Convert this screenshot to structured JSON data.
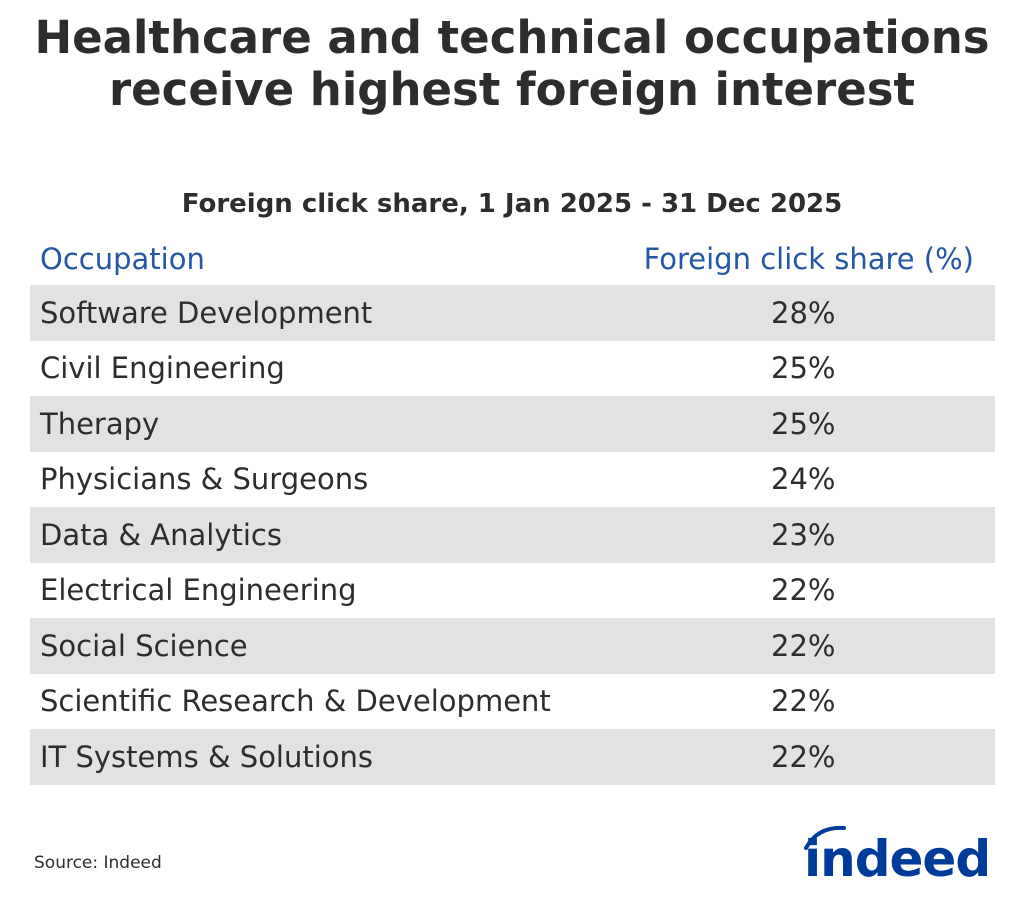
{
  "chart_data": {
    "type": "table",
    "title": "Healthcare and technical occupations receive highest foreign interest",
    "subtitle": "Foreign click share, 1 Jan 2025 - 31 Dec 2025",
    "columns": [
      "Occupation",
      "Foreign click share (%)"
    ],
    "rows": [
      {
        "occupation": "Software Development",
        "value": "28%"
      },
      {
        "occupation": "Civil Engineering",
        "value": "25%"
      },
      {
        "occupation": "Therapy",
        "value": "25%"
      },
      {
        "occupation": "Physicians & Surgeons",
        "value": "24%"
      },
      {
        "occupation": "Data & Analytics",
        "value": "23%"
      },
      {
        "occupation": "Electrical Engineering",
        "value": "22%"
      },
      {
        "occupation": "Social Science",
        "value": "22%"
      },
      {
        "occupation": "Scientific Research & Development",
        "value": "22%"
      },
      {
        "occupation": "IT Systems & Solutions",
        "value": "22%"
      }
    ],
    "source": "Source: Indeed",
    "logo_text": "indeed",
    "colors": {
      "header": "#2557a7",
      "shaded_row": "#e4e2e0",
      "text": "#2d2d2d",
      "logo": "#003a9b"
    }
  }
}
